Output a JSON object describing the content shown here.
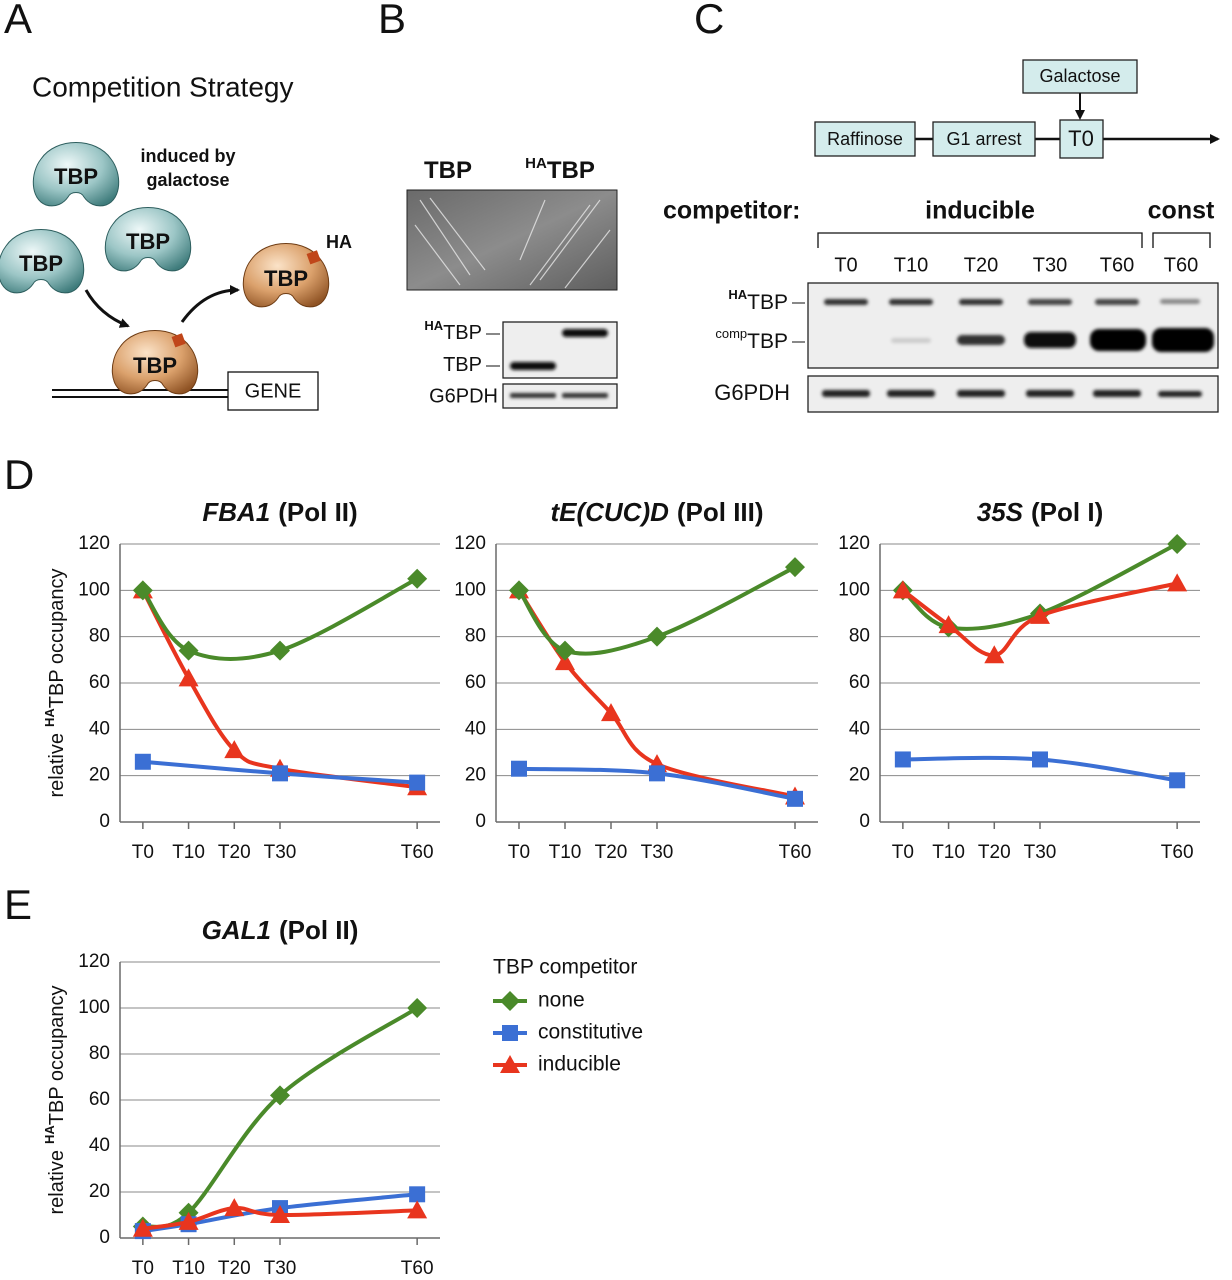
{
  "panel_a": {
    "label": "A",
    "title": "Competition Strategy",
    "protein": "TBP",
    "induction": [
      "induced by",
      "galactose"
    ],
    "tag": "HA",
    "gene": "GENE"
  },
  "panel_b": {
    "label": "B",
    "strains": [
      {
        "sup": "",
        "base": "TBP"
      },
      {
        "sup": "HA",
        "base": "TBP"
      }
    ],
    "blot_labels": [
      {
        "sup": "HA",
        "base": "TBP"
      },
      {
        "sup": "",
        "base": "TBP"
      }
    ],
    "loading": "G6PDH"
  },
  "panel_c": {
    "label": "C",
    "timeline": [
      "Raffinose",
      "G1 arrest",
      "T0"
    ],
    "inducer": "Galactose",
    "competitor_label": "competitor:",
    "groups": [
      "inducible",
      "const"
    ],
    "lanes": [
      "T0",
      "T10",
      "T20",
      "T30",
      "T60",
      "T60"
    ],
    "blot_labels": [
      {
        "sup": "HA",
        "base": "TBP"
      },
      {
        "sup": "comp",
        "base": "TBP"
      }
    ],
    "loading": "G6PDH"
  },
  "panel_d": {
    "label": "D"
  },
  "panel_e": {
    "label": "E"
  },
  "chart_data": [
    {
      "type": "line",
      "gene": "FBA1",
      "polymerase": "(Pol II)",
      "ylabel": {
        "prefix": "relative",
        "sup": "HA",
        "base": "TBP occupancy"
      },
      "xlim": [
        -5,
        65
      ],
      "xticks": [
        {
          "value": 0,
          "label": "T0"
        },
        {
          "value": 10,
          "label": "T10"
        },
        {
          "value": 20,
          "label": "T20"
        },
        {
          "value": 30,
          "label": "T30"
        },
        {
          "value": 60,
          "label": "T60"
        }
      ],
      "ylim": [
        0,
        120
      ],
      "yticks": [
        0,
        20,
        40,
        60,
        80,
        100,
        120
      ],
      "grid": true,
      "series": [
        {
          "color": "#e8351e",
          "marker": "triangle",
          "x": [
            0,
            10,
            20,
            30,
            60
          ],
          "values": [
            100,
            62,
            31,
            23,
            15
          ]
        },
        {
          "color": "#3b6fd4",
          "marker": "square",
          "x": [
            0,
            30,
            60
          ],
          "values": [
            26,
            21,
            17
          ]
        },
        {
          "color": "#4a8a2a",
          "marker": "diamond",
          "x": [
            0,
            10,
            30,
            60
          ],
          "values": [
            100,
            74,
            74,
            105
          ]
        }
      ]
    },
    {
      "type": "line",
      "gene": "tE(CUC)D",
      "polymerase": "(Pol III)",
      "xlim": [
        -5,
        65
      ],
      "xticks": [
        {
          "value": 0,
          "label": "T0"
        },
        {
          "value": 10,
          "label": "T10"
        },
        {
          "value": 20,
          "label": "T20"
        },
        {
          "value": 30,
          "label": "T30"
        },
        {
          "value": 60,
          "label": "T60"
        }
      ],
      "ylim": [
        0,
        120
      ],
      "yticks": [
        0,
        20,
        40,
        60,
        80,
        100,
        120
      ],
      "grid": true,
      "series": [
        {
          "color": "#e8351e",
          "marker": "triangle",
          "x": [
            0,
            10,
            20,
            30,
            60
          ],
          "values": [
            100,
            69,
            47,
            25,
            11
          ]
        },
        {
          "color": "#3b6fd4",
          "marker": "square",
          "x": [
            0,
            30,
            60
          ],
          "values": [
            23,
            21,
            10
          ]
        },
        {
          "color": "#4a8a2a",
          "marker": "diamond",
          "x": [
            0,
            10,
            30,
            60
          ],
          "values": [
            100,
            74,
            80,
            110
          ]
        }
      ]
    },
    {
      "type": "line",
      "gene": "35S",
      "polymerase": "(Pol I)",
      "xlim": [
        -5,
        65
      ],
      "xticks": [
        {
          "value": 0,
          "label": "T0"
        },
        {
          "value": 10,
          "label": "T10"
        },
        {
          "value": 20,
          "label": "T20"
        },
        {
          "value": 30,
          "label": "T30"
        },
        {
          "value": 60,
          "label": "T60"
        }
      ],
      "ylim": [
        0,
        120
      ],
      "yticks": [
        0,
        20,
        40,
        60,
        80,
        100,
        120
      ],
      "grid": true,
      "series": [
        {
          "color": "#3b6fd4",
          "marker": "square",
          "x": [
            0,
            30,
            60
          ],
          "values": [
            27,
            27,
            18
          ]
        },
        {
          "color": "#4a8a2a",
          "marker": "diamond",
          "x": [
            0,
            10,
            30,
            60
          ],
          "values": [
            100,
            84,
            90,
            120
          ]
        },
        {
          "color": "#e8351e",
          "marker": "triangle",
          "x": [
            0,
            10,
            20,
            30,
            60
          ],
          "values": [
            100,
            85,
            72,
            89,
            103
          ]
        }
      ]
    },
    {
      "type": "line",
      "gene": "GAL1",
      "polymerase": "(Pol II)",
      "ylabel": {
        "prefix": "relative",
        "sup": "HA",
        "base": "TBP occupancy"
      },
      "xlim": [
        -5,
        65
      ],
      "xticks": [
        {
          "value": 0,
          "label": "T0"
        },
        {
          "value": 10,
          "label": "T10"
        },
        {
          "value": 20,
          "label": "T20"
        },
        {
          "value": 30,
          "label": "T30"
        },
        {
          "value": 60,
          "label": "T60"
        }
      ],
      "ylim": [
        0,
        120
      ],
      "yticks": [
        0,
        20,
        40,
        60,
        80,
        100,
        120
      ],
      "grid": true,
      "legend_title": "TBP competitor",
      "series": [
        {
          "name": "none",
          "color": "#4a8a2a",
          "marker": "diamond",
          "x": [
            0,
            10,
            30,
            60
          ],
          "values": [
            5,
            11,
            62,
            100
          ]
        },
        {
          "name": "constitutive",
          "color": "#3b6fd4",
          "marker": "square",
          "x": [
            0,
            10,
            30,
            60
          ],
          "values": [
            3,
            6,
            13,
            19
          ]
        },
        {
          "name": "inducible",
          "color": "#e8351e",
          "marker": "triangle",
          "x": [
            0,
            10,
            20,
            30,
            60
          ],
          "values": [
            4,
            7,
            13,
            10,
            12
          ]
        }
      ]
    }
  ]
}
